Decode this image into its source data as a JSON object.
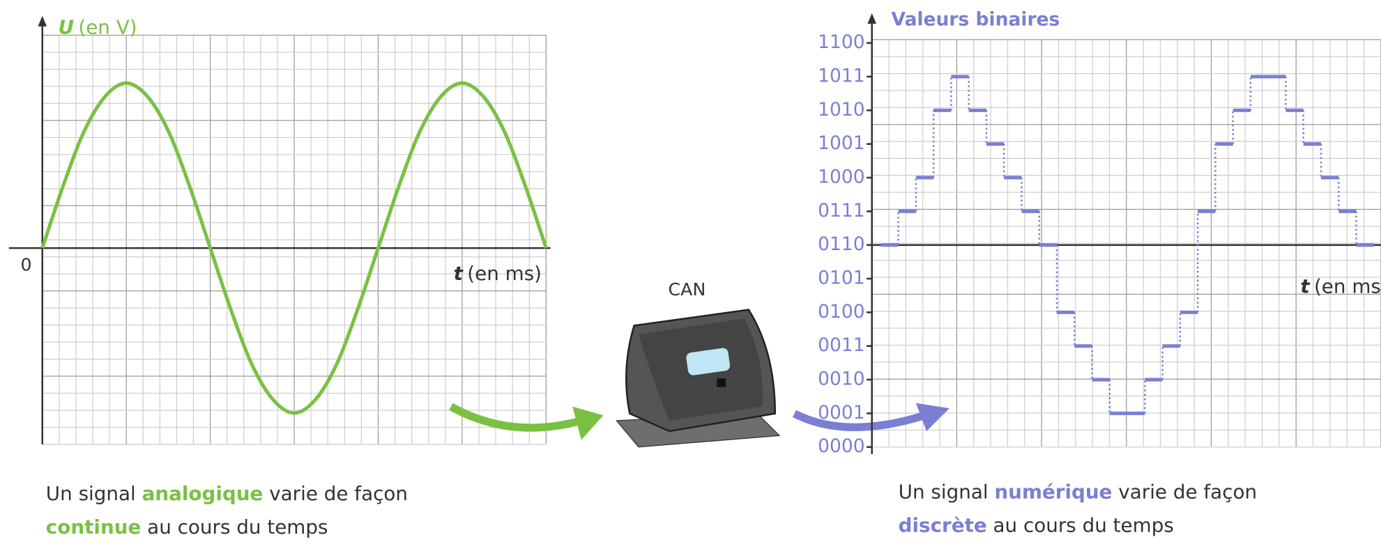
{
  "chart_data": [
    {
      "type": "line",
      "y_label": {
        "symbol": "U",
        "unit": "(en V)"
      },
      "x_label": {
        "symbol": "t",
        "unit": "(en ms)"
      },
      "x": [
        0,
        1,
        2,
        3,
        4,
        5,
        6,
        7,
        8,
        9,
        10,
        11,
        12,
        13,
        14,
        15,
        16,
        17,
        18,
        19,
        20,
        21,
        22,
        23,
        24
      ],
      "series": [
        {
          "color": "#7ac143",
          "values": [
            0,
            0.38,
            0.71,
            0.92,
            1,
            0.92,
            0.71,
            0.38,
            0,
            -0.38,
            -0.71,
            -0.92,
            -1,
            -0.92,
            -0.71,
            -0.38,
            0,
            0.38,
            0.71,
            0.92,
            1,
            0.92,
            0.71,
            0.38,
            0
          ]
        }
      ],
      "xlim": [
        0,
        24
      ],
      "ylim": [
        -1.19,
        1.29
      ],
      "yticks": [
        0
      ],
      "grid": true
    },
    {
      "type": "step",
      "y_label": "Valeurs binaires",
      "x_label": {
        "symbol": "t",
        "unit": "(en ms"
      },
      "x": [
        0,
        1,
        2,
        3,
        4,
        5,
        6,
        7,
        8,
        9,
        10,
        11,
        12,
        13,
        14,
        15,
        16,
        17,
        18,
        19,
        20,
        21,
        22,
        23,
        24,
        25,
        26,
        27
      ],
      "series": [
        {
          "color": "#7b7fd3",
          "values": [
            6,
            7,
            8,
            10,
            11,
            10,
            9,
            8,
            7,
            6,
            4,
            3,
            2,
            1,
            1,
            2,
            3,
            4,
            7,
            9,
            10,
            11,
            11,
            10,
            9,
            8,
            7,
            6
          ]
        }
      ],
      "xlim": [
        -0.5,
        28.4
      ],
      "ylim": [
        0,
        12.1
      ],
      "x_axis_crosses": 6,
      "yticks": [
        {
          "value": 0,
          "label": "0000"
        },
        {
          "value": 1,
          "label": "0001"
        },
        {
          "value": 2,
          "label": "0010"
        },
        {
          "value": 3,
          "label": "0011"
        },
        {
          "value": 4,
          "label": "0100"
        },
        {
          "value": 5,
          "label": "0101"
        },
        {
          "value": 6,
          "label": "0110"
        },
        {
          "value": 7,
          "label": "0111"
        },
        {
          "value": 8,
          "label": "1000"
        },
        {
          "value": 9,
          "label": "1001"
        },
        {
          "value": 10,
          "label": "1010"
        },
        {
          "value": 11,
          "label": "1011"
        },
        {
          "value": 12,
          "label": "1100"
        }
      ],
      "grid": true
    }
  ],
  "device_label": "CAN",
  "captions": [
    {
      "line1": [
        "Un signal ",
        "analogique",
        " varie de façon"
      ],
      "line2": [
        "continue",
        " au cours du temps"
      ]
    },
    {
      "line1": [
        "Un signal ",
        "numérique",
        " varie de façon"
      ],
      "line2": [
        "discrète",
        " au cours du temps"
      ]
    }
  ]
}
